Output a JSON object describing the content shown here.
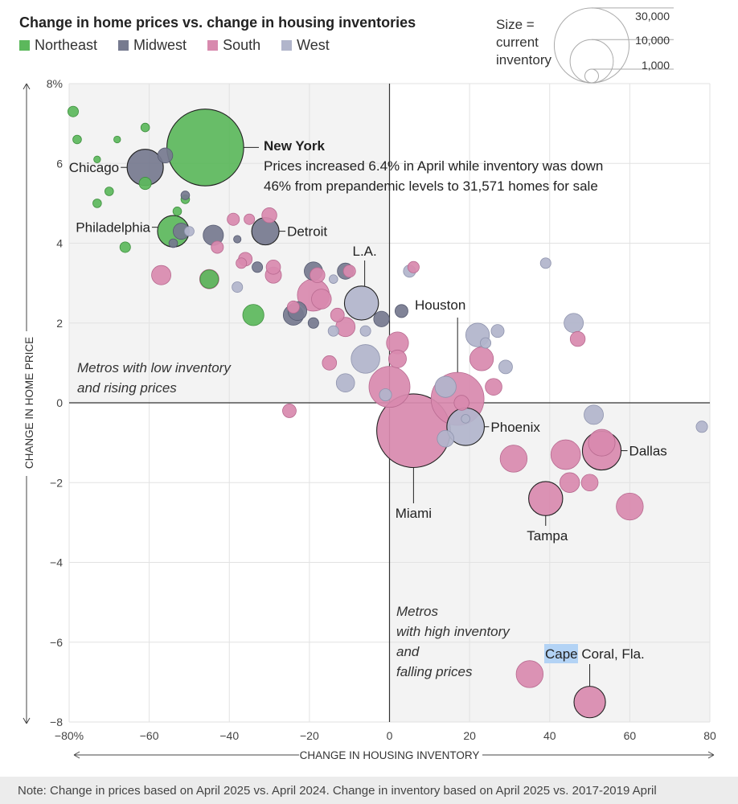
{
  "chart_data": {
    "type": "scatter",
    "title": "Change in home prices vs. change in housing inventories",
    "xlabel": "CHANGE IN HOUSING INVENTORY",
    "ylabel": "CHANGE IN HOME PRICE",
    "xlim": [
      -80,
      80
    ],
    "ylim": [
      -8,
      8
    ],
    "x_ticks": [
      {
        "value": -80,
        "label": "−80%"
      },
      {
        "value": -60,
        "label": "−60"
      },
      {
        "value": -40,
        "label": "−40"
      },
      {
        "value": -20,
        "label": "−20"
      },
      {
        "value": 0,
        "label": "0"
      },
      {
        "value": 20,
        "label": "20"
      },
      {
        "value": 40,
        "label": "40"
      },
      {
        "value": 60,
        "label": "60"
      },
      {
        "value": 80,
        "label": "80"
      }
    ],
    "y_ticks": [
      {
        "value": 8,
        "label": "8%"
      },
      {
        "value": 6,
        "label": "6"
      },
      {
        "value": 4,
        "label": "4"
      },
      {
        "value": 2,
        "label": "2"
      },
      {
        "value": 0,
        "label": "0"
      },
      {
        "value": -2,
        "label": "−2"
      },
      {
        "value": -4,
        "label": "−4"
      },
      {
        "value": -6,
        "label": "−6"
      },
      {
        "value": -8,
        "label": "−8"
      }
    ],
    "legend": [
      {
        "name": "Northeast",
        "color": "#5cb85c"
      },
      {
        "name": "Midwest",
        "color": "#767a8f"
      },
      {
        "name": "South",
        "color": "#d88aae"
      },
      {
        "name": "West",
        "color": "#b1b5cb"
      }
    ],
    "size_legend": {
      "title": "Size = current inventory",
      "values": [
        {
          "value": 30000,
          "label": "30,000"
        },
        {
          "value": 10000,
          "label": "10,000"
        },
        {
          "value": 1000,
          "label": "1,000"
        }
      ]
    },
    "quadrant_labels": [
      {
        "text": "Metros with low inventory and rising prices",
        "quadrant": "top-left"
      },
      {
        "text": "Metros with high inventory and falling prices",
        "quadrant": "bottom-right"
      }
    ],
    "points": [
      {
        "region": "Northeast",
        "x": -79,
        "y": 7.3,
        "inventory": 600
      },
      {
        "region": "Northeast",
        "x": -78,
        "y": 6.6,
        "inventory": 400
      },
      {
        "region": "Northeast",
        "x": -73,
        "y": 6.1,
        "inventory": 250
      },
      {
        "region": "Northeast",
        "x": -68,
        "y": 6.6,
        "inventory": 250
      },
      {
        "region": "Northeast",
        "x": -61,
        "y": 6.9,
        "inventory": 400
      },
      {
        "region": "Northeast",
        "x": -70,
        "y": 5.3,
        "inventory": 400
      },
      {
        "region": "Northeast",
        "x": -73,
        "y": 5.0,
        "inventory": 400
      },
      {
        "region": "Northeast",
        "x": -61,
        "y": 5.5,
        "inventory": 800
      },
      {
        "region": "Northeast",
        "x": -53,
        "y": 4.8,
        "inventory": 400
      },
      {
        "region": "Northeast",
        "x": -51,
        "y": 5.1,
        "inventory": 400
      },
      {
        "region": "Northeast",
        "x": -66,
        "y": 3.9,
        "inventory": 600
      },
      {
        "region": "Northeast",
        "x": -54,
        "y": 4.3,
        "inventory": 5300,
        "label": "Philadelphia"
      },
      {
        "region": "Northeast",
        "x": -45,
        "y": 3.1,
        "inventory": 1800
      },
      {
        "region": "Northeast",
        "x": -34,
        "y": 2.2,
        "inventory": 2400
      },
      {
        "region": "Northeast",
        "x": -46,
        "y": 6.4,
        "inventory": 31571,
        "label": "New York"
      },
      {
        "region": "Midwest",
        "x": -61,
        "y": 5.9,
        "inventory": 7000,
        "label": "Chicago"
      },
      {
        "region": "Midwest",
        "x": -56,
        "y": 6.2,
        "inventory": 1200
      },
      {
        "region": "Midwest",
        "x": -51,
        "y": 5.2,
        "inventory": 400
      },
      {
        "region": "Midwest",
        "x": -52,
        "y": 4.3,
        "inventory": 1400
      },
      {
        "region": "Midwest",
        "x": -44,
        "y": 4.2,
        "inventory": 2200
      },
      {
        "region": "Midwest",
        "x": -54,
        "y": 4.0,
        "inventory": 400
      },
      {
        "region": "Midwest",
        "x": -38,
        "y": 4.1,
        "inventory": 300
      },
      {
        "region": "Midwest",
        "x": -31,
        "y": 4.3,
        "inventory": 4000,
        "label": "Detroit"
      },
      {
        "region": "Midwest",
        "x": -33,
        "y": 3.4,
        "inventory": 600
      },
      {
        "region": "Midwest",
        "x": -19,
        "y": 3.3,
        "inventory": 1800
      },
      {
        "region": "Midwest",
        "x": -11,
        "y": 3.3,
        "inventory": 1400
      },
      {
        "region": "Midwest",
        "x": -23,
        "y": 2.3,
        "inventory": 1900
      },
      {
        "region": "Midwest",
        "x": -24,
        "y": 2.2,
        "inventory": 2200
      },
      {
        "region": "Midwest",
        "x": -19,
        "y": 2.0,
        "inventory": 600
      },
      {
        "region": "Midwest",
        "x": -2,
        "y": 2.1,
        "inventory": 1300
      },
      {
        "region": "Midwest",
        "x": 3,
        "y": 2.3,
        "inventory": 900
      },
      {
        "region": "South",
        "x": -43,
        "y": 3.9,
        "inventory": 800
      },
      {
        "region": "South",
        "x": -39,
        "y": 4.6,
        "inventory": 800
      },
      {
        "region": "South",
        "x": -35,
        "y": 4.6,
        "inventory": 600
      },
      {
        "region": "South",
        "x": -30,
        "y": 4.7,
        "inventory": 1200
      },
      {
        "region": "South",
        "x": -36,
        "y": 3.6,
        "inventory": 1000
      },
      {
        "region": "South",
        "x": -37,
        "y": 3.5,
        "inventory": 600
      },
      {
        "region": "South",
        "x": -29,
        "y": 3.4,
        "inventory": 1100
      },
      {
        "region": "South",
        "x": -29,
        "y": 3.2,
        "inventory": 1400
      },
      {
        "region": "South",
        "x": -57,
        "y": 3.2,
        "inventory": 2000
      },
      {
        "region": "South",
        "x": -45,
        "y": 3.1,
        "inventory": 2000
      },
      {
        "region": "South",
        "x": -19,
        "y": 2.7,
        "inventory": 5500
      },
      {
        "region": "South",
        "x": -18,
        "y": 3.2,
        "inventory": 1200
      },
      {
        "region": "South",
        "x": -17,
        "y": 2.6,
        "inventory": 2100
      },
      {
        "region": "South",
        "x": -24,
        "y": 2.4,
        "inventory": 800
      },
      {
        "region": "South",
        "x": -13,
        "y": 2.2,
        "inventory": 1000
      },
      {
        "region": "South",
        "x": -11,
        "y": 1.9,
        "inventory": 2000
      },
      {
        "region": "South",
        "x": -10,
        "y": 3.3,
        "inventory": 800
      },
      {
        "region": "South",
        "x": -15,
        "y": 1.0,
        "inventory": 1100
      },
      {
        "region": "South",
        "x": -25,
        "y": -0.2,
        "inventory": 1000
      },
      {
        "region": "South",
        "x": 2,
        "y": 1.5,
        "inventory": 2600
      },
      {
        "region": "South",
        "x": 2,
        "y": 1.1,
        "inventory": 1700
      },
      {
        "region": "South",
        "x": 6,
        "y": 3.4,
        "inventory": 700
      },
      {
        "region": "South",
        "x": 0,
        "y": 0.4,
        "inventory": 9000
      },
      {
        "region": "South",
        "x": 6,
        "y": -0.7,
        "inventory": 29000,
        "label": "Miami"
      },
      {
        "region": "South",
        "x": 17,
        "y": 0.1,
        "inventory": 15000
      },
      {
        "region": "South",
        "x": 18,
        "y": 0.0,
        "inventory": 1200
      },
      {
        "region": "South",
        "x": 23,
        "y": 1.1,
        "inventory": 3000
      },
      {
        "region": "South",
        "x": 26,
        "y": 0.4,
        "inventory": 1500
      },
      {
        "region": "South",
        "x": 31,
        "y": -1.4,
        "inventory": 3900
      },
      {
        "region": "South",
        "x": 39,
        "y": -2.4,
        "inventory": 6200,
        "label": "Tampa"
      },
      {
        "region": "South",
        "x": 44,
        "y": -1.3,
        "inventory": 4700
      },
      {
        "region": "South",
        "x": 45,
        "y": -2.0,
        "inventory": 2100
      },
      {
        "region": "South",
        "x": 50,
        "y": -2.0,
        "inventory": 1500
      },
      {
        "region": "South",
        "x": 53,
        "y": -1.2,
        "inventory": 8000,
        "label": "Dallas"
      },
      {
        "region": "South",
        "x": 53,
        "y": -1.0,
        "inventory": 3800
      },
      {
        "region": "South",
        "x": 60,
        "y": -2.6,
        "inventory": 3900
      },
      {
        "region": "South",
        "x": 47,
        "y": 1.6,
        "inventory": 1200
      },
      {
        "region": "South",
        "x": 35,
        "y": -6.8,
        "inventory": 3900
      },
      {
        "region": "South",
        "x": 50,
        "y": -7.5,
        "inventory": 5300,
        "label": "Cape Coral, Fla."
      },
      {
        "region": "West",
        "x": -50,
        "y": 4.3,
        "inventory": 500
      },
      {
        "region": "West",
        "x": -38,
        "y": 2.9,
        "inventory": 600
      },
      {
        "region": "West",
        "x": -14,
        "y": 3.1,
        "inventory": 400
      },
      {
        "region": "West",
        "x": -14,
        "y": 1.8,
        "inventory": 600
      },
      {
        "region": "West",
        "x": -6,
        "y": 1.8,
        "inventory": 600
      },
      {
        "region": "West",
        "x": -7,
        "y": 2.5,
        "inventory": 6200,
        "label": "L.A."
      },
      {
        "region": "West",
        "x": -6,
        "y": 1.1,
        "inventory": 4400
      },
      {
        "region": "West",
        "x": -11,
        "y": 0.5,
        "inventory": 1800
      },
      {
        "region": "West",
        "x": -1,
        "y": 0.2,
        "inventory": 800
      },
      {
        "region": "West",
        "x": 5,
        "y": 3.3,
        "inventory": 800
      },
      {
        "region": "West",
        "x": 14,
        "y": 0.4,
        "inventory": 2400
      },
      {
        "region": "West",
        "x": 19,
        "y": -0.6,
        "inventory": 7500,
        "label": "Phoenix"
      },
      {
        "region": "West",
        "x": 14,
        "y": -0.9,
        "inventory": 1500
      },
      {
        "region": "West",
        "x": 19,
        "y": -0.4,
        "inventory": 400
      },
      {
        "region": "West",
        "x": 22,
        "y": 1.7,
        "inventory": 3000
      },
      {
        "region": "West",
        "x": 24,
        "y": 1.5,
        "inventory": 600
      },
      {
        "region": "West",
        "x": 27,
        "y": 1.8,
        "inventory": 900
      },
      {
        "region": "West",
        "x": 29,
        "y": 0.9,
        "inventory": 1000
      },
      {
        "region": "West",
        "x": 39,
        "y": 3.5,
        "inventory": 600
      },
      {
        "region": "West",
        "x": 46,
        "y": 2.0,
        "inventory": 2000
      },
      {
        "region": "West",
        "x": 51,
        "y": -0.3,
        "inventory": 2000
      },
      {
        "region": "West",
        "x": 78,
        "y": -0.6,
        "inventory": 700
      }
    ],
    "annotations": [
      {
        "label": "New York",
        "headline": "New York",
        "lines": [
          "Prices increased 6.4% in April while inventory was down",
          "46% from prepandemic levels to 31,571 homes for sale"
        ]
      },
      {
        "label": "Chicago"
      },
      {
        "label": "Philadelphia"
      },
      {
        "label": "Detroit"
      },
      {
        "label": "L.A."
      },
      {
        "label": "Houston"
      },
      {
        "label": "Phoenix"
      },
      {
        "label": "Dallas"
      },
      {
        "label": "Miami"
      },
      {
        "label": "Tampa"
      },
      {
        "label": "Cape Coral, Fla."
      }
    ]
  },
  "note": "Note: Change in prices based on April 2025 vs. April 2024. Change in inventory based on April 2025 vs. 2017-2019 April"
}
